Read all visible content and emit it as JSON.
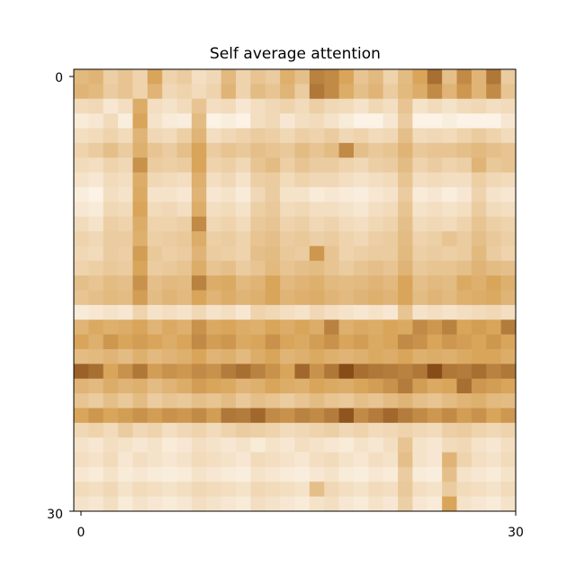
{
  "chart_data": {
    "type": "heatmap",
    "title": "Self average attention",
    "xlabel": "",
    "ylabel": "",
    "xlim": [
      0,
      30
    ],
    "ylim": [
      0,
      30
    ],
    "x_ticks": [
      "0",
      "30"
    ],
    "y_ticks": [
      "0",
      "30"
    ],
    "y_axis_inverted": true,
    "grid": false,
    "colormap": {
      "low": "#fffaf3",
      "mid": "#d9a55a",
      "high": "#6b2b00"
    },
    "rows": 30,
    "cols": 30,
    "values": [
      [
        0.42,
        0.45,
        0.28,
        0.35,
        0.25,
        0.55,
        0.25,
        0.3,
        0.18,
        0.22,
        0.42,
        0.25,
        0.35,
        0.3,
        0.48,
        0.38,
        0.68,
        0.65,
        0.55,
        0.35,
        0.42,
        0.25,
        0.4,
        0.55,
        0.75,
        0.38,
        0.65,
        0.45,
        0.72,
        0.3
      ],
      [
        0.45,
        0.42,
        0.3,
        0.35,
        0.25,
        0.45,
        0.22,
        0.25,
        0.2,
        0.25,
        0.45,
        0.25,
        0.4,
        0.35,
        0.45,
        0.3,
        0.72,
        0.65,
        0.5,
        0.38,
        0.45,
        0.3,
        0.42,
        0.5,
        0.65,
        0.45,
        0.6,
        0.45,
        0.65,
        0.35
      ],
      [
        0.2,
        0.22,
        0.12,
        0.18,
        0.5,
        0.18,
        0.15,
        0.2,
        0.35,
        0.18,
        0.2,
        0.12,
        0.18,
        0.22,
        0.25,
        0.2,
        0.28,
        0.22,
        0.2,
        0.15,
        0.22,
        0.18,
        0.35,
        0.15,
        0.2,
        0.15,
        0.2,
        0.22,
        0.18,
        0.2
      ],
      [
        0.1,
        0.12,
        0.2,
        0.08,
        0.55,
        0.15,
        0.1,
        0.08,
        0.4,
        0.05,
        0.08,
        0.05,
        0.18,
        0.22,
        0.12,
        0.18,
        0.2,
        0.15,
        0.1,
        0.05,
        0.05,
        0.12,
        0.3,
        0.05,
        0.05,
        0.08,
        0.05,
        0.05,
        0.05,
        0.12
      ],
      [
        0.18,
        0.2,
        0.25,
        0.2,
        0.45,
        0.22,
        0.2,
        0.28,
        0.45,
        0.18,
        0.22,
        0.25,
        0.3,
        0.28,
        0.22,
        0.28,
        0.25,
        0.3,
        0.22,
        0.25,
        0.2,
        0.22,
        0.38,
        0.2,
        0.22,
        0.2,
        0.25,
        0.3,
        0.25,
        0.2
      ],
      [
        0.25,
        0.3,
        0.38,
        0.3,
        0.48,
        0.35,
        0.3,
        0.38,
        0.55,
        0.3,
        0.35,
        0.32,
        0.38,
        0.35,
        0.32,
        0.4,
        0.35,
        0.4,
        0.65,
        0.38,
        0.32,
        0.35,
        0.45,
        0.32,
        0.35,
        0.35,
        0.38,
        0.42,
        0.38,
        0.35
      ],
      [
        0.2,
        0.18,
        0.25,
        0.22,
        0.62,
        0.3,
        0.28,
        0.3,
        0.55,
        0.25,
        0.28,
        0.22,
        0.35,
        0.4,
        0.28,
        0.35,
        0.3,
        0.3,
        0.25,
        0.22,
        0.28,
        0.3,
        0.4,
        0.25,
        0.3,
        0.25,
        0.28,
        0.45,
        0.32,
        0.35
      ],
      [
        0.15,
        0.12,
        0.2,
        0.18,
        0.5,
        0.22,
        0.2,
        0.18,
        0.48,
        0.18,
        0.22,
        0.15,
        0.28,
        0.3,
        0.2,
        0.25,
        0.22,
        0.22,
        0.18,
        0.15,
        0.18,
        0.2,
        0.35,
        0.18,
        0.2,
        0.18,
        0.18,
        0.28,
        0.22,
        0.2
      ],
      [
        0.08,
        0.05,
        0.18,
        0.15,
        0.52,
        0.15,
        0.15,
        0.12,
        0.45,
        0.12,
        0.15,
        0.1,
        0.22,
        0.3,
        0.15,
        0.15,
        0.1,
        0.12,
        0.1,
        0.08,
        0.12,
        0.15,
        0.3,
        0.1,
        0.12,
        0.08,
        0.12,
        0.25,
        0.15,
        0.12
      ],
      [
        0.12,
        0.1,
        0.22,
        0.2,
        0.55,
        0.2,
        0.22,
        0.18,
        0.5,
        0.18,
        0.2,
        0.15,
        0.28,
        0.32,
        0.2,
        0.22,
        0.18,
        0.18,
        0.15,
        0.12,
        0.18,
        0.2,
        0.35,
        0.15,
        0.18,
        0.15,
        0.18,
        0.3,
        0.2,
        0.18
      ],
      [
        0.2,
        0.15,
        0.28,
        0.25,
        0.5,
        0.25,
        0.25,
        0.28,
        0.65,
        0.22,
        0.25,
        0.2,
        0.32,
        0.35,
        0.25,
        0.28,
        0.22,
        0.25,
        0.2,
        0.18,
        0.22,
        0.25,
        0.38,
        0.2,
        0.22,
        0.2,
        0.25,
        0.35,
        0.28,
        0.25
      ],
      [
        0.25,
        0.22,
        0.3,
        0.3,
        0.48,
        0.28,
        0.3,
        0.32,
        0.5,
        0.28,
        0.3,
        0.25,
        0.35,
        0.38,
        0.3,
        0.32,
        0.28,
        0.3,
        0.25,
        0.22,
        0.28,
        0.3,
        0.4,
        0.25,
        0.28,
        0.35,
        0.3,
        0.38,
        0.32,
        0.28
      ],
      [
        0.22,
        0.2,
        0.3,
        0.28,
        0.58,
        0.32,
        0.28,
        0.3,
        0.45,
        0.3,
        0.28,
        0.25,
        0.38,
        0.4,
        0.32,
        0.3,
        0.6,
        0.35,
        0.25,
        0.28,
        0.3,
        0.3,
        0.42,
        0.28,
        0.3,
        0.28,
        0.3,
        0.42,
        0.3,
        0.25
      ],
      [
        0.25,
        0.28,
        0.32,
        0.3,
        0.55,
        0.3,
        0.32,
        0.35,
        0.5,
        0.35,
        0.38,
        0.3,
        0.35,
        0.42,
        0.35,
        0.38,
        0.4,
        0.35,
        0.3,
        0.35,
        0.38,
        0.35,
        0.45,
        0.32,
        0.35,
        0.35,
        0.38,
        0.45,
        0.4,
        0.38
      ],
      [
        0.38,
        0.35,
        0.4,
        0.38,
        0.62,
        0.38,
        0.42,
        0.4,
        0.68,
        0.5,
        0.52,
        0.42,
        0.45,
        0.55,
        0.42,
        0.45,
        0.48,
        0.42,
        0.4,
        0.42,
        0.45,
        0.42,
        0.55,
        0.38,
        0.42,
        0.4,
        0.52,
        0.48,
        0.55,
        0.48
      ],
      [
        0.35,
        0.38,
        0.42,
        0.4,
        0.58,
        0.4,
        0.45,
        0.42,
        0.55,
        0.45,
        0.5,
        0.45,
        0.48,
        0.55,
        0.45,
        0.48,
        0.5,
        0.45,
        0.42,
        0.45,
        0.48,
        0.45,
        0.55,
        0.4,
        0.45,
        0.42,
        0.48,
        0.5,
        0.52,
        0.45
      ],
      [
        0.1,
        0.12,
        0.15,
        0.12,
        0.25,
        0.15,
        0.18,
        0.15,
        0.22,
        0.15,
        0.18,
        0.12,
        0.25,
        0.22,
        0.18,
        0.15,
        0.22,
        0.18,
        0.15,
        0.12,
        0.15,
        0.12,
        0.35,
        0.15,
        0.18,
        0.15,
        0.18,
        0.2,
        0.22,
        0.18
      ],
      [
        0.45,
        0.52,
        0.48,
        0.5,
        0.55,
        0.45,
        0.52,
        0.48,
        0.62,
        0.52,
        0.55,
        0.5,
        0.48,
        0.55,
        0.5,
        0.55,
        0.5,
        0.68,
        0.48,
        0.52,
        0.5,
        0.55,
        0.52,
        0.65,
        0.6,
        0.68,
        0.55,
        0.58,
        0.55,
        0.7
      ],
      [
        0.55,
        0.48,
        0.6,
        0.55,
        0.58,
        0.55,
        0.5,
        0.55,
        0.65,
        0.58,
        0.6,
        0.52,
        0.55,
        0.62,
        0.55,
        0.52,
        0.58,
        0.62,
        0.55,
        0.58,
        0.52,
        0.55,
        0.65,
        0.62,
        0.55,
        0.6,
        0.58,
        0.55,
        0.6,
        0.55
      ],
      [
        0.4,
        0.42,
        0.45,
        0.4,
        0.48,
        0.42,
        0.45,
        0.48,
        0.55,
        0.45,
        0.48,
        0.42,
        0.5,
        0.55,
        0.45,
        0.48,
        0.52,
        0.48,
        0.45,
        0.48,
        0.52,
        0.5,
        0.55,
        0.48,
        0.5,
        0.48,
        0.52,
        0.55,
        0.55,
        0.5
      ],
      [
        0.8,
        0.75,
        0.55,
        0.62,
        0.72,
        0.58,
        0.62,
        0.6,
        0.65,
        0.62,
        0.7,
        0.75,
        0.68,
        0.62,
        0.55,
        0.78,
        0.62,
        0.72,
        0.88,
        0.75,
        0.72,
        0.7,
        0.68,
        0.72,
        0.88,
        0.72,
        0.7,
        0.75,
        0.68,
        0.72
      ],
      [
        0.45,
        0.42,
        0.5,
        0.45,
        0.48,
        0.4,
        0.45,
        0.5,
        0.58,
        0.55,
        0.52,
        0.45,
        0.48,
        0.55,
        0.5,
        0.48,
        0.55,
        0.52,
        0.5,
        0.55,
        0.58,
        0.62,
        0.7,
        0.58,
        0.52,
        0.55,
        0.75,
        0.6,
        0.58,
        0.55
      ],
      [
        0.35,
        0.3,
        0.38,
        0.32,
        0.4,
        0.3,
        0.35,
        0.32,
        0.38,
        0.35,
        0.4,
        0.32,
        0.38,
        0.35,
        0.3,
        0.35,
        0.4,
        0.35,
        0.32,
        0.38,
        0.35,
        0.4,
        0.45,
        0.38,
        0.35,
        0.4,
        0.45,
        0.48,
        0.42,
        0.4
      ],
      [
        0.55,
        0.6,
        0.55,
        0.58,
        0.62,
        0.58,
        0.62,
        0.6,
        0.65,
        0.58,
        0.72,
        0.7,
        0.78,
        0.65,
        0.62,
        0.68,
        0.65,
        0.7,
        0.85,
        0.65,
        0.7,
        0.78,
        0.7,
        0.65,
        0.6,
        0.65,
        0.58,
        0.62,
        0.55,
        0.6
      ],
      [
        0.22,
        0.25,
        0.2,
        0.3,
        0.22,
        0.25,
        0.18,
        0.22,
        0.25,
        0.2,
        0.25,
        0.3,
        0.28,
        0.25,
        0.2,
        0.22,
        0.25,
        0.28,
        0.22,
        0.25,
        0.2,
        0.22,
        0.25,
        0.22,
        0.2,
        0.28,
        0.3,
        0.25,
        0.22,
        0.25
      ],
      [
        0.15,
        0.12,
        0.18,
        0.15,
        0.12,
        0.15,
        0.1,
        0.12,
        0.18,
        0.15,
        0.12,
        0.15,
        0.1,
        0.15,
        0.12,
        0.18,
        0.15,
        0.12,
        0.1,
        0.15,
        0.12,
        0.18,
        0.35,
        0.15,
        0.12,
        0.2,
        0.22,
        0.15,
        0.12,
        0.18
      ],
      [
        0.18,
        0.15,
        0.2,
        0.12,
        0.18,
        0.15,
        0.12,
        0.15,
        0.2,
        0.18,
        0.15,
        0.12,
        0.2,
        0.18,
        0.15,
        0.12,
        0.18,
        0.2,
        0.15,
        0.12,
        0.18,
        0.15,
        0.38,
        0.15,
        0.12,
        0.45,
        0.25,
        0.18,
        0.15,
        0.2
      ],
      [
        0.12,
        0.1,
        0.15,
        0.1,
        0.12,
        0.1,
        0.08,
        0.1,
        0.15,
        0.12,
        0.1,
        0.08,
        0.15,
        0.12,
        0.1,
        0.08,
        0.12,
        0.15,
        0.1,
        0.08,
        0.12,
        0.1,
        0.3,
        0.1,
        0.08,
        0.38,
        0.15,
        0.12,
        0.1,
        0.15
      ],
      [
        0.2,
        0.18,
        0.22,
        0.15,
        0.2,
        0.18,
        0.15,
        0.18,
        0.22,
        0.2,
        0.18,
        0.15,
        0.22,
        0.2,
        0.18,
        0.15,
        0.38,
        0.22,
        0.18,
        0.15,
        0.2,
        0.18,
        0.32,
        0.18,
        0.15,
        0.3,
        0.2,
        0.18,
        0.15,
        0.2
      ],
      [
        0.15,
        0.12,
        0.18,
        0.1,
        0.15,
        0.12,
        0.1,
        0.12,
        0.18,
        0.15,
        0.12,
        0.1,
        0.18,
        0.15,
        0.12,
        0.1,
        0.15,
        0.18,
        0.12,
        0.1,
        0.15,
        0.12,
        0.28,
        0.12,
        0.1,
        0.55,
        0.15,
        0.12,
        0.1,
        0.15
      ]
    ]
  }
}
